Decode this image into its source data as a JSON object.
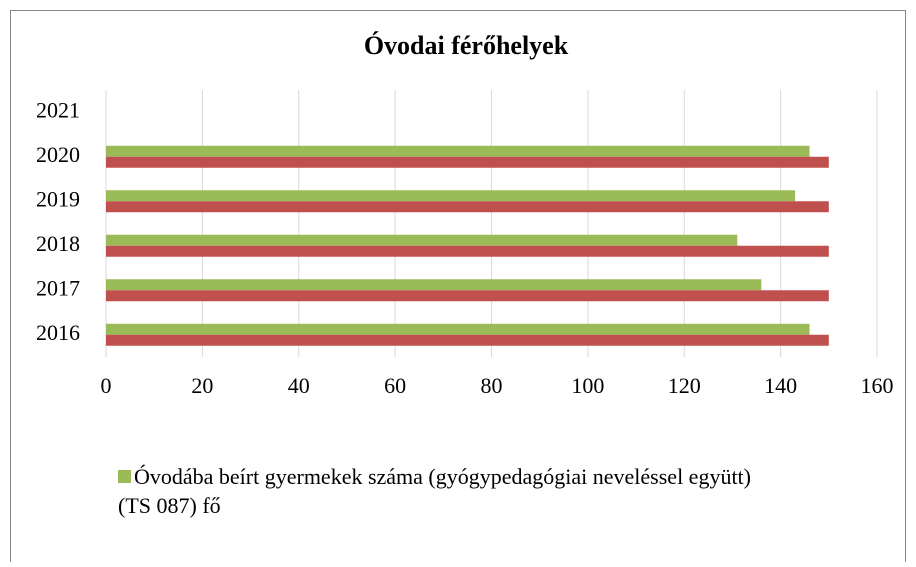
{
  "chart_data": {
    "type": "bar",
    "orientation": "horizontal",
    "title": "Óvodai férőhelyek",
    "categories": [
      "2016",
      "2017",
      "2018",
      "2019",
      "2020",
      "2021"
    ],
    "series": [
      {
        "name": "Óvodába beírt gyermekek száma (gyógypedagógiai neveléssel együtt)\n(TS 087) fő",
        "color": "#9bbb59",
        "values": [
          146,
          136,
          131,
          143,
          146,
          null
        ]
      },
      {
        "color": "#c0504d",
        "values": [
          150,
          150,
          150,
          150,
          150,
          null
        ]
      }
    ],
    "xlim": [
      0,
      160
    ],
    "xticks": [
      0,
      20,
      40,
      60,
      80,
      100,
      120,
      140,
      160
    ],
    "grid": true
  }
}
